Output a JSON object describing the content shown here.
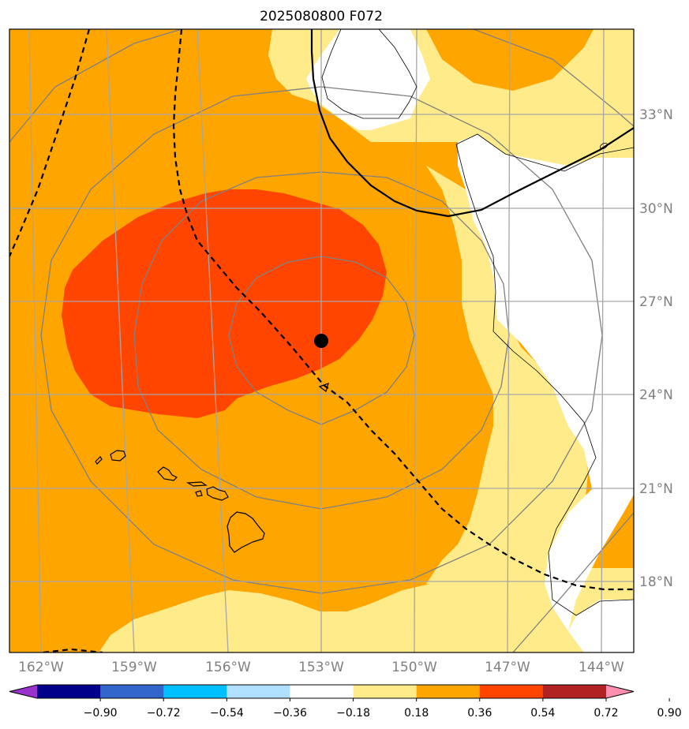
{
  "chart_data": {
    "type": "heatmap",
    "title": "2025080800 F072",
    "map": {
      "lon_range": [
        -163,
        -143
      ],
      "lat_range": [
        15.5,
        35.5
      ],
      "lon_ticks": [
        {
          "value": -162,
          "label": "162°W"
        },
        {
          "value": -159,
          "label": "159°W"
        },
        {
          "value": -156,
          "label": "156°W"
        },
        {
          "value": -153,
          "label": "153°W"
        },
        {
          "value": -150,
          "label": "150°W"
        },
        {
          "value": -147,
          "label": "147°W"
        },
        {
          "value": -144,
          "label": "144°W"
        }
      ],
      "lat_ticks": [
        {
          "value": 33,
          "label": "33°N"
        },
        {
          "value": 30,
          "label": "30°N"
        },
        {
          "value": 27,
          "label": "27°N"
        },
        {
          "value": 24,
          "label": "24°N"
        },
        {
          "value": 21,
          "label": "21°N"
        },
        {
          "value": 18,
          "label": "18°N"
        }
      ],
      "grid": true,
      "center_marker": {
        "lon": -153.0,
        "lat": 25.7
      },
      "range_rings_deg": [
        3,
        5.4,
        8.7
      ]
    },
    "colorbar": {
      "levels": [
        -0.9,
        -0.72,
        -0.54,
        -0.36,
        -0.18,
        0.18,
        0.36,
        0.54,
        0.72,
        0.9
      ],
      "labels": [
        "−0.90",
        "−0.72",
        "−0.54",
        "−0.36",
        "−0.18",
        "0.18",
        "0.36",
        "0.54",
        "0.72",
        "0.90"
      ],
      "colors": [
        "#9933cc",
        "#00008b",
        "#3366cc",
        "#00bfff",
        "#b0e0ff",
        "#ffffff",
        "#ffeb8a",
        "#ffa500",
        "#ff4500",
        "#b22222",
        "#ff8fb0"
      ],
      "extend": "both"
    },
    "colors": {
      "orange": "#ffa500",
      "red_orange": "#ff4500",
      "light_yellow": "#ffeb8a",
      "white": "#ffffff"
    }
  }
}
